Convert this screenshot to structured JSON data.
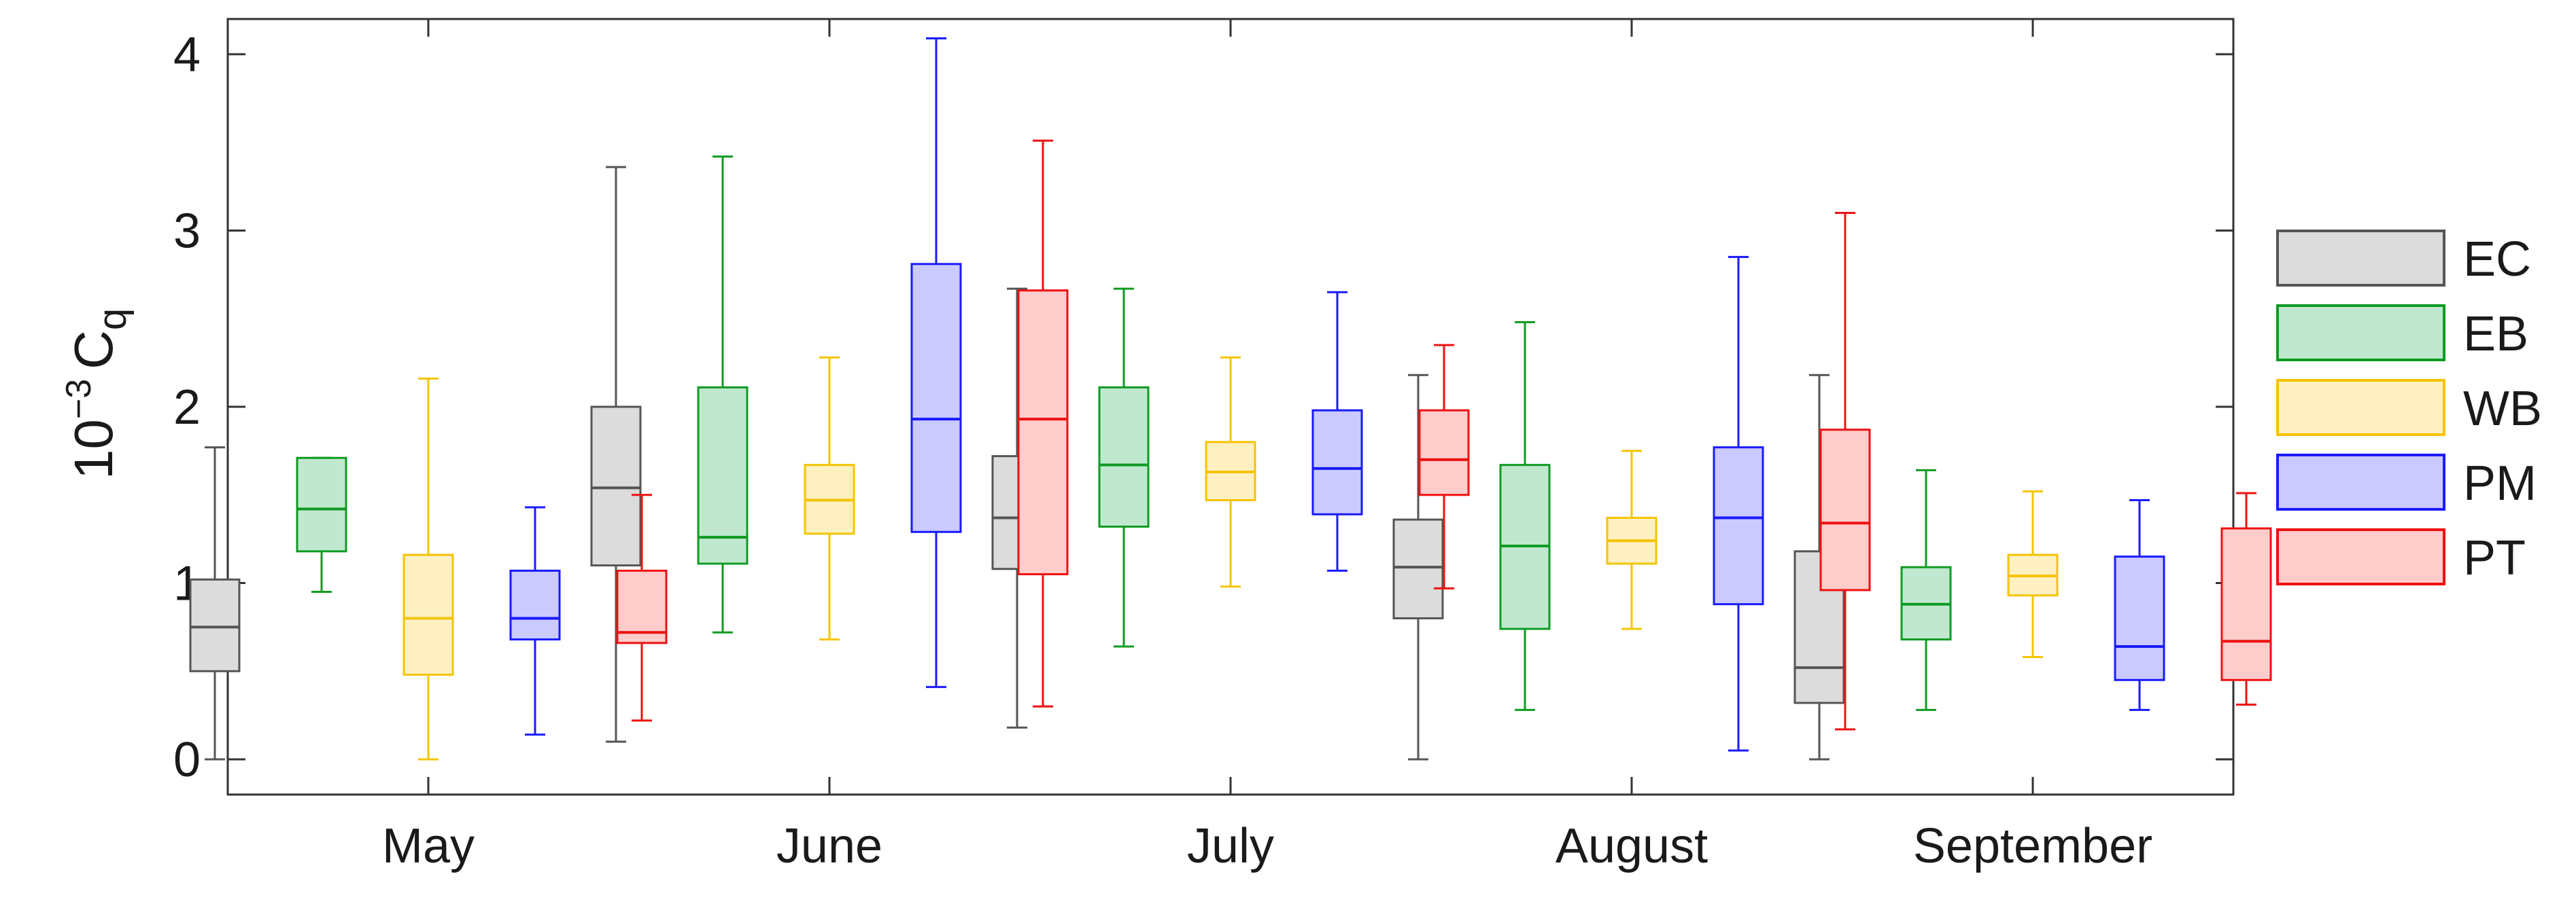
{
  "chart_data": {
    "type": "boxplot",
    "ylabel": {
      "prefix": "10",
      "exponent": "−3",
      "symbol": "C",
      "subscript": "q"
    },
    "ylim": [
      -0.2,
      4.2
    ],
    "yticks": [
      0,
      1,
      2,
      3,
      4
    ],
    "ytick_labels": [
      "0",
      "1",
      "2",
      "3",
      "4"
    ],
    "categories": [
      "May",
      "June",
      "July",
      "August",
      "September"
    ],
    "legend_position": "right",
    "series": [
      {
        "name": "EC",
        "stroke": "#555555",
        "fill": "#dcdcdc",
        "boxes": [
          {
            "min": 0.0,
            "q1": 0.5,
            "median": 0.75,
            "q3": 1.02,
            "max": 1.77
          },
          {
            "min": 0.1,
            "q1": 1.1,
            "median": 1.54,
            "q3": 2.0,
            "max": 3.36
          },
          {
            "min": 0.18,
            "q1": 1.08,
            "median": 1.37,
            "q3": 1.72,
            "max": 2.67
          },
          {
            "min": 0.0,
            "q1": 0.8,
            "median": 1.09,
            "q3": 1.36,
            "max": 2.18
          },
          {
            "min": 0.0,
            "q1": 0.32,
            "median": 0.52,
            "q3": 1.18,
            "max": 2.18
          }
        ]
      },
      {
        "name": "EB",
        "stroke": "#0f9b22",
        "fill": "#bfe8cf",
        "boxes": [
          {
            "min": 0.95,
            "q1": 1.18,
            "median": 1.42,
            "q3": 1.71,
            "max": 1.71
          },
          {
            "min": 0.72,
            "q1": 1.11,
            "median": 1.26,
            "q3": 2.11,
            "max": 3.42
          },
          {
            "min": 0.64,
            "q1": 1.32,
            "median": 1.67,
            "q3": 2.11,
            "max": 2.67
          },
          {
            "min": 0.28,
            "q1": 0.74,
            "median": 1.21,
            "q3": 1.67,
            "max": 2.48
          },
          {
            "min": 0.28,
            "q1": 0.68,
            "median": 0.88,
            "q3": 1.09,
            "max": 1.64
          }
        ]
      },
      {
        "name": "WB",
        "stroke": "#f5c400",
        "fill": "#fff0c2",
        "boxes": [
          {
            "min": 0.0,
            "q1": 0.48,
            "median": 0.8,
            "q3": 1.16,
            "max": 2.16
          },
          {
            "min": 0.68,
            "q1": 1.28,
            "median": 1.47,
            "q3": 1.67,
            "max": 2.28
          },
          {
            "min": 0.98,
            "q1": 1.47,
            "median": 1.63,
            "q3": 1.8,
            "max": 2.28
          },
          {
            "min": 0.74,
            "q1": 1.11,
            "median": 1.24,
            "q3": 1.37,
            "max": 1.75
          },
          {
            "min": 0.58,
            "q1": 0.93,
            "median": 1.04,
            "q3": 1.16,
            "max": 1.52
          }
        ]
      },
      {
        "name": "PM",
        "stroke": "#1a1aff",
        "fill": "#cacaff",
        "boxes": [
          {
            "min": 0.14,
            "q1": 0.68,
            "median": 0.8,
            "q3": 1.07,
            "max": 1.43
          },
          {
            "min": 0.41,
            "q1": 1.29,
            "median": 1.93,
            "q3": 2.81,
            "max": 4.09
          },
          {
            "min": 1.07,
            "q1": 1.39,
            "median": 1.65,
            "q3": 1.98,
            "max": 2.65
          },
          {
            "min": 0.05,
            "q1": 0.88,
            "median": 1.37,
            "q3": 1.77,
            "max": 2.85
          },
          {
            "min": 0.28,
            "q1": 0.45,
            "median": 0.64,
            "q3": 1.15,
            "max": 1.47
          }
        ]
      },
      {
        "name": "PT",
        "stroke": "#ee1111",
        "fill": "#ffcccc",
        "boxes": [
          {
            "min": 0.22,
            "q1": 0.66,
            "median": 0.72,
            "q3": 1.07,
            "max": 1.5
          },
          {
            "min": 0.3,
            "q1": 1.05,
            "median": 1.93,
            "q3": 2.66,
            "max": 3.51
          },
          {
            "min": 0.97,
            "q1": 1.5,
            "median": 1.7,
            "q3": 1.98,
            "max": 2.35
          },
          {
            "min": 0.17,
            "q1": 0.96,
            "median": 1.34,
            "q3": 1.87,
            "max": 3.1
          },
          {
            "min": 0.31,
            "q1": 0.45,
            "median": 0.67,
            "q3": 1.31,
            "max": 1.51
          }
        ]
      }
    ]
  }
}
